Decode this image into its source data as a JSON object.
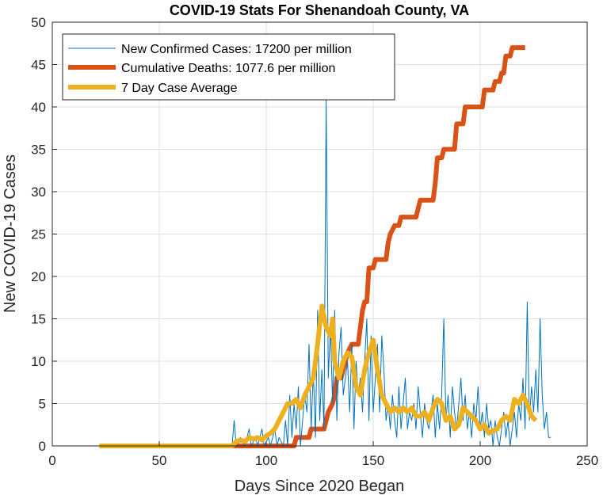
{
  "chart_data": {
    "type": "line",
    "title": "COVID-19 Stats For Shenandoah County, VA",
    "xlabel": "Days Since 2020 Began",
    "ylabel": "New COVID-19 Cases",
    "xlim": [
      0,
      250
    ],
    "ylim": [
      0,
      50
    ],
    "xticks": [
      0,
      50,
      100,
      150,
      200,
      250
    ],
    "yticks": [
      0,
      5,
      10,
      15,
      20,
      25,
      30,
      35,
      40,
      45,
      50
    ],
    "grid": true,
    "legend_location": "top-left",
    "series": [
      {
        "name": "New Confirmed Cases: 17200 per million",
        "color": "#0072BD",
        "line_style": "thin",
        "points": [
          [
            22,
            0
          ],
          [
            84,
            0
          ],
          [
            85,
            3
          ],
          [
            86,
            0
          ],
          [
            88,
            1
          ],
          [
            90,
            0
          ],
          [
            92,
            2
          ],
          [
            93,
            0
          ],
          [
            95,
            1
          ],
          [
            96,
            0
          ],
          [
            98,
            2
          ],
          [
            99,
            0
          ],
          [
            101,
            1
          ],
          [
            102,
            0
          ],
          [
            104,
            2
          ],
          [
            105,
            0
          ],
          [
            106,
            1
          ],
          [
            108,
            0
          ],
          [
            109,
            3
          ],
          [
            110,
            0
          ],
          [
            111,
            6
          ],
          [
            112,
            1
          ],
          [
            113,
            5
          ],
          [
            114,
            2
          ],
          [
            115,
            7
          ],
          [
            116,
            0
          ],
          [
            117,
            3
          ],
          [
            118,
            6
          ],
          [
            119,
            4
          ],
          [
            120,
            12
          ],
          [
            121,
            2
          ],
          [
            122,
            9
          ],
          [
            123,
            1
          ],
          [
            124,
            16
          ],
          [
            125,
            3
          ],
          [
            126,
            9
          ],
          [
            127,
            2
          ],
          [
            128,
            41
          ],
          [
            129,
            8
          ],
          [
            130,
            14
          ],
          [
            131,
            5
          ],
          [
            132,
            16
          ],
          [
            133,
            3
          ],
          [
            134,
            11
          ],
          [
            135,
            14
          ],
          [
            136,
            6
          ],
          [
            137,
            8
          ],
          [
            138,
            10
          ],
          [
            139,
            4
          ],
          [
            140,
            12
          ],
          [
            141,
            2
          ],
          [
            142,
            10
          ],
          [
            143,
            6
          ],
          [
            144,
            8
          ],
          [
            145,
            4
          ],
          [
            146,
            10
          ],
          [
            147,
            15
          ],
          [
            148,
            3
          ],
          [
            149,
            13
          ],
          [
            150,
            4
          ],
          [
            151,
            8
          ],
          [
            152,
            12
          ],
          [
            153,
            4
          ],
          [
            154,
            13
          ],
          [
            155,
            9
          ],
          [
            156,
            3
          ],
          [
            157,
            5
          ],
          [
            158,
            2
          ],
          [
            159,
            6
          ],
          [
            160,
            3
          ],
          [
            161,
            1
          ],
          [
            162,
            7
          ],
          [
            163,
            2
          ],
          [
            164,
            5
          ],
          [
            165,
            8
          ],
          [
            166,
            2
          ],
          [
            167,
            4
          ],
          [
            168,
            3
          ],
          [
            169,
            5
          ],
          [
            170,
            2
          ],
          [
            171,
            7
          ],
          [
            172,
            4
          ],
          [
            173,
            1
          ],
          [
            174,
            5
          ],
          [
            175,
            3
          ],
          [
            176,
            2
          ],
          [
            177,
            4
          ],
          [
            178,
            6
          ],
          [
            179,
            1
          ],
          [
            180,
            5
          ],
          [
            181,
            2
          ],
          [
            182,
            6
          ],
          [
            183,
            15
          ],
          [
            184,
            3
          ],
          [
            185,
            6
          ],
          [
            186,
            1
          ],
          [
            187,
            7
          ],
          [
            188,
            4
          ],
          [
            189,
            2
          ],
          [
            190,
            5
          ],
          [
            191,
            8
          ],
          [
            192,
            3
          ],
          [
            193,
            6
          ],
          [
            194,
            2
          ],
          [
            195,
            4
          ],
          [
            196,
            1
          ],
          [
            197,
            5
          ],
          [
            198,
            3
          ],
          [
            199,
            7
          ],
          [
            200,
            2
          ],
          [
            201,
            4
          ],
          [
            202,
            1
          ],
          [
            203,
            5
          ],
          [
            204,
            2
          ],
          [
            205,
            3
          ],
          [
            206,
            0
          ],
          [
            207,
            3
          ],
          [
            208,
            1
          ],
          [
            209,
            0
          ],
          [
            210,
            2
          ],
          [
            211,
            4
          ],
          [
            212,
            1
          ],
          [
            213,
            3
          ],
          [
            214,
            0
          ],
          [
            215,
            2
          ],
          [
            216,
            4
          ],
          [
            217,
            1
          ],
          [
            218,
            5
          ],
          [
            219,
            3
          ],
          [
            220,
            8
          ],
          [
            221,
            2
          ],
          [
            222,
            17
          ],
          [
            223,
            3
          ],
          [
            224,
            7
          ],
          [
            225,
            4
          ],
          [
            226,
            9
          ],
          [
            227,
            4
          ],
          [
            228,
            15
          ],
          [
            229,
            6
          ],
          [
            230,
            2
          ],
          [
            231,
            4
          ],
          [
            232,
            1
          ],
          [
            233,
            1
          ]
        ]
      },
      {
        "name": "Cumulative Deaths: 1077.6 per million",
        "color": "#D95319",
        "line_style": "thick",
        "points": [
          [
            22,
            0
          ],
          [
            113,
            0
          ],
          [
            114,
            1
          ],
          [
            120,
            1
          ],
          [
            121,
            2
          ],
          [
            127,
            2
          ],
          [
            128,
            3
          ],
          [
            129,
            4
          ],
          [
            131,
            5
          ],
          [
            132,
            6
          ],
          [
            133,
            8
          ],
          [
            135,
            8
          ],
          [
            136,
            9
          ],
          [
            137,
            10
          ],
          [
            138,
            11
          ],
          [
            140,
            12
          ],
          [
            143,
            12
          ],
          [
            144,
            14
          ],
          [
            145,
            16
          ],
          [
            146,
            17
          ],
          [
            147,
            17
          ],
          [
            148,
            21
          ],
          [
            150,
            21
          ],
          [
            151,
            22
          ],
          [
            156,
            22
          ],
          [
            157,
            24
          ],
          [
            158,
            25
          ],
          [
            160,
            26
          ],
          [
            162,
            26
          ],
          [
            163,
            27
          ],
          [
            170,
            27
          ],
          [
            171,
            28
          ],
          [
            172,
            29
          ],
          [
            178,
            29
          ],
          [
            179,
            31
          ],
          [
            180,
            34
          ],
          [
            182,
            34
          ],
          [
            183,
            35
          ],
          [
            188,
            35
          ],
          [
            189,
            38
          ],
          [
            192,
            38
          ],
          [
            193,
            40
          ],
          [
            201,
            40
          ],
          [
            202,
            42
          ],
          [
            206,
            42
          ],
          [
            207,
            43
          ],
          [
            209,
            43
          ],
          [
            210,
            44
          ],
          [
            211,
            44
          ],
          [
            212,
            46
          ],
          [
            214,
            46
          ],
          [
            215,
            47
          ],
          [
            221,
            47
          ]
        ]
      },
      {
        "name": "7 Day Case Average",
        "color": "#EDB120",
        "line_style": "thick",
        "points": [
          [
            22,
            0
          ],
          [
            84,
            0
          ],
          [
            86,
            0.5
          ],
          [
            88,
            0.7
          ],
          [
            90,
            0.5
          ],
          [
            92,
            1
          ],
          [
            94,
            0.8
          ],
          [
            96,
            1
          ],
          [
            98,
            0.7
          ],
          [
            100,
            1.2
          ],
          [
            102,
            1.5
          ],
          [
            104,
            2
          ],
          [
            106,
            3
          ],
          [
            108,
            4
          ],
          [
            110,
            5
          ],
          [
            112,
            5
          ],
          [
            114,
            5.5
          ],
          [
            116,
            4.5
          ],
          [
            118,
            6
          ],
          [
            120,
            7
          ],
          [
            122,
            8
          ],
          [
            124,
            12
          ],
          [
            126,
            16.5
          ],
          [
            128,
            14
          ],
          [
            130,
            13
          ],
          [
            131,
            15
          ],
          [
            132,
            10
          ],
          [
            134,
            8
          ],
          [
            136,
            10
          ],
          [
            138,
            11
          ],
          [
            140,
            10.5
          ],
          [
            142,
            7
          ],
          [
            144,
            6
          ],
          [
            146,
            9
          ],
          [
            148,
            11
          ],
          [
            150,
            12.5
          ],
          [
            152,
            9
          ],
          [
            154,
            6
          ],
          [
            156,
            5
          ],
          [
            158,
            4
          ],
          [
            160,
            4.5
          ],
          [
            162,
            4
          ],
          [
            164,
            4.5
          ],
          [
            166,
            4
          ],
          [
            168,
            4.5
          ],
          [
            170,
            3.5
          ],
          [
            172,
            3.5
          ],
          [
            174,
            4
          ],
          [
            176,
            3
          ],
          [
            178,
            4.5
          ],
          [
            180,
            5.5
          ],
          [
            182,
            5
          ],
          [
            184,
            3
          ],
          [
            186,
            3.5
          ],
          [
            188,
            2
          ],
          [
            190,
            2.5
          ],
          [
            192,
            4.5
          ],
          [
            194,
            4
          ],
          [
            196,
            3.5
          ],
          [
            198,
            3
          ],
          [
            200,
            2
          ],
          [
            202,
            2.5
          ],
          [
            204,
            1.5
          ],
          [
            206,
            1.8
          ],
          [
            208,
            2
          ],
          [
            210,
            3
          ],
          [
            212,
            3.5
          ],
          [
            214,
            3
          ],
          [
            216,
            5.5
          ],
          [
            218,
            5
          ],
          [
            220,
            6
          ],
          [
            222,
            5
          ],
          [
            224,
            3.5
          ],
          [
            226,
            3
          ]
        ]
      }
    ]
  }
}
